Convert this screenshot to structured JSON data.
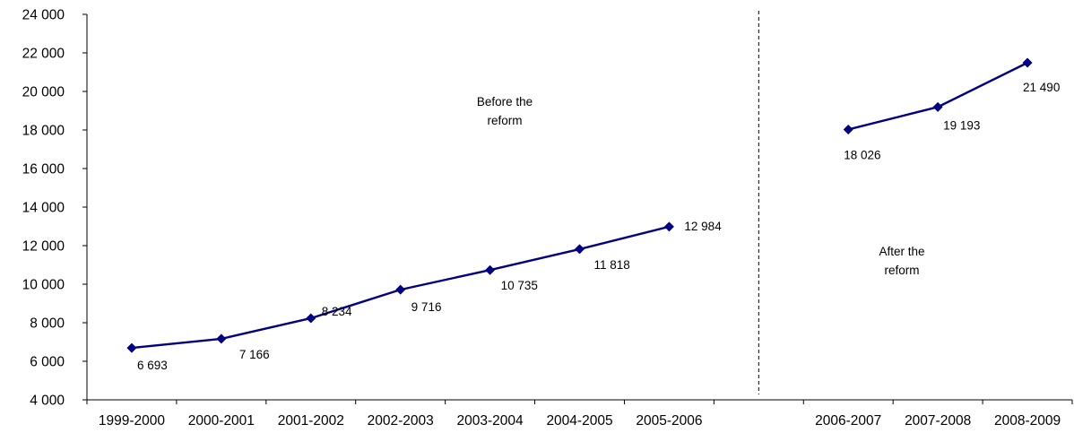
{
  "chart_data": {
    "type": "line",
    "categories": [
      "1999-2000",
      "2000-2001",
      "2001-2002",
      "2002-2003",
      "2003-2004",
      "2004-2005",
      "2005-2006",
      "",
      "2006-2007",
      "2007-2008",
      "2008-2009"
    ],
    "series": [
      {
        "segments": [
          {
            "categories": [
              "1999-2000",
              "2000-2001",
              "2001-2002",
              "2002-2003",
              "2003-2004",
              "2004-2005",
              "2005-2006"
            ],
            "values": [
              6693,
              7166,
              8234,
              9716,
              10735,
              11818,
              12984
            ],
            "data_labels": [
              "6 693",
              "7 166",
              "8 234",
              "9 716",
              "10 735",
              "11 818",
              "12 984"
            ]
          },
          {
            "categories": [
              "2006-2007",
              "2007-2008",
              "2008-2009"
            ],
            "values": [
              18026,
              19193,
              21490
            ],
            "data_labels": [
              "18 026",
              "19 193",
              "21 490"
            ]
          }
        ],
        "color": "#000080",
        "marker": "diamond"
      }
    ],
    "ylim": [
      4000,
      24000
    ],
    "y_ticks": [
      4000,
      6000,
      8000,
      10000,
      12000,
      14000,
      16000,
      18000,
      20000,
      22000,
      24000
    ],
    "y_tick_labels": [
      "4 000",
      "6 000",
      "8 000",
      "10 000",
      "12 000",
      "14 000",
      "16 000",
      "18 000",
      "20 000",
      "22 000",
      "24 000"
    ],
    "grid": false,
    "legend": "none",
    "annotations": [
      {
        "lines": [
          "Before the",
          "reform"
        ]
      },
      {
        "lines": [
          "After the",
          "reform"
        ]
      }
    ],
    "divider": {
      "between": [
        "2005-2006",
        "2006-2007"
      ],
      "style": "dashed"
    },
    "title": "",
    "xlabel": "",
    "ylabel": ""
  }
}
